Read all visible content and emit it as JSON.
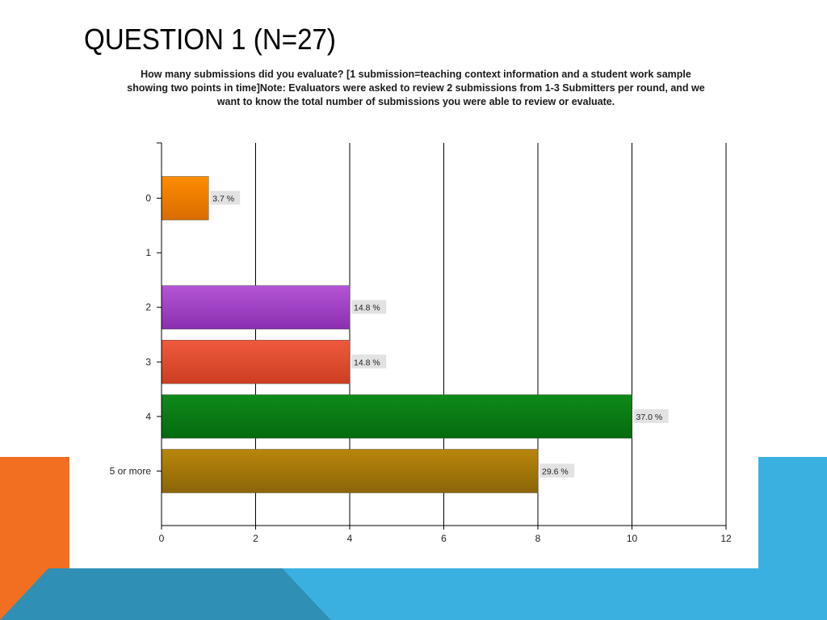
{
  "slide": {
    "title": "QUESTION 1 (N=27)"
  },
  "colors": {
    "accent_orange": "#f26f21",
    "accent_blue": "#3ab0e0",
    "accent_dark_blue": "#2f8fb5"
  },
  "chart_data": {
    "type": "bar",
    "orientation": "horizontal",
    "title": "How many submissions did you evaluate? [1 submission=teaching context information and a student work sample showing two points in time]Note: Evaluators were asked to review 2 submissions from 1-3 Submitters per round, and we want to know the total number of submissions you were able to review or evaluate.",
    "xlabel": "",
    "ylabel": "",
    "xlim": [
      0,
      12
    ],
    "x_ticks": [
      "0",
      "2",
      "4",
      "6",
      "8",
      "10",
      "12"
    ],
    "grid": true,
    "categories": [
      "0",
      "1",
      "2",
      "3",
      "4",
      "5 or more"
    ],
    "values": [
      1,
      0,
      4,
      4,
      10,
      8
    ],
    "labels": [
      "3.7 %",
      "",
      "14.8 %",
      "14.8 %",
      "37.0 %",
      "29.6 %"
    ],
    "bar_colors": [
      [
        "#ff8c00",
        "#d96c00"
      ],
      [
        "#cccccc",
        "#aaaaaa"
      ],
      [
        "#b455d6",
        "#8a2fb0"
      ],
      [
        "#f05a3c",
        "#cc3e22"
      ],
      [
        "#0f8a1a",
        "#046a0e"
      ],
      [
        "#b8860b",
        "#8c6508"
      ]
    ]
  }
}
